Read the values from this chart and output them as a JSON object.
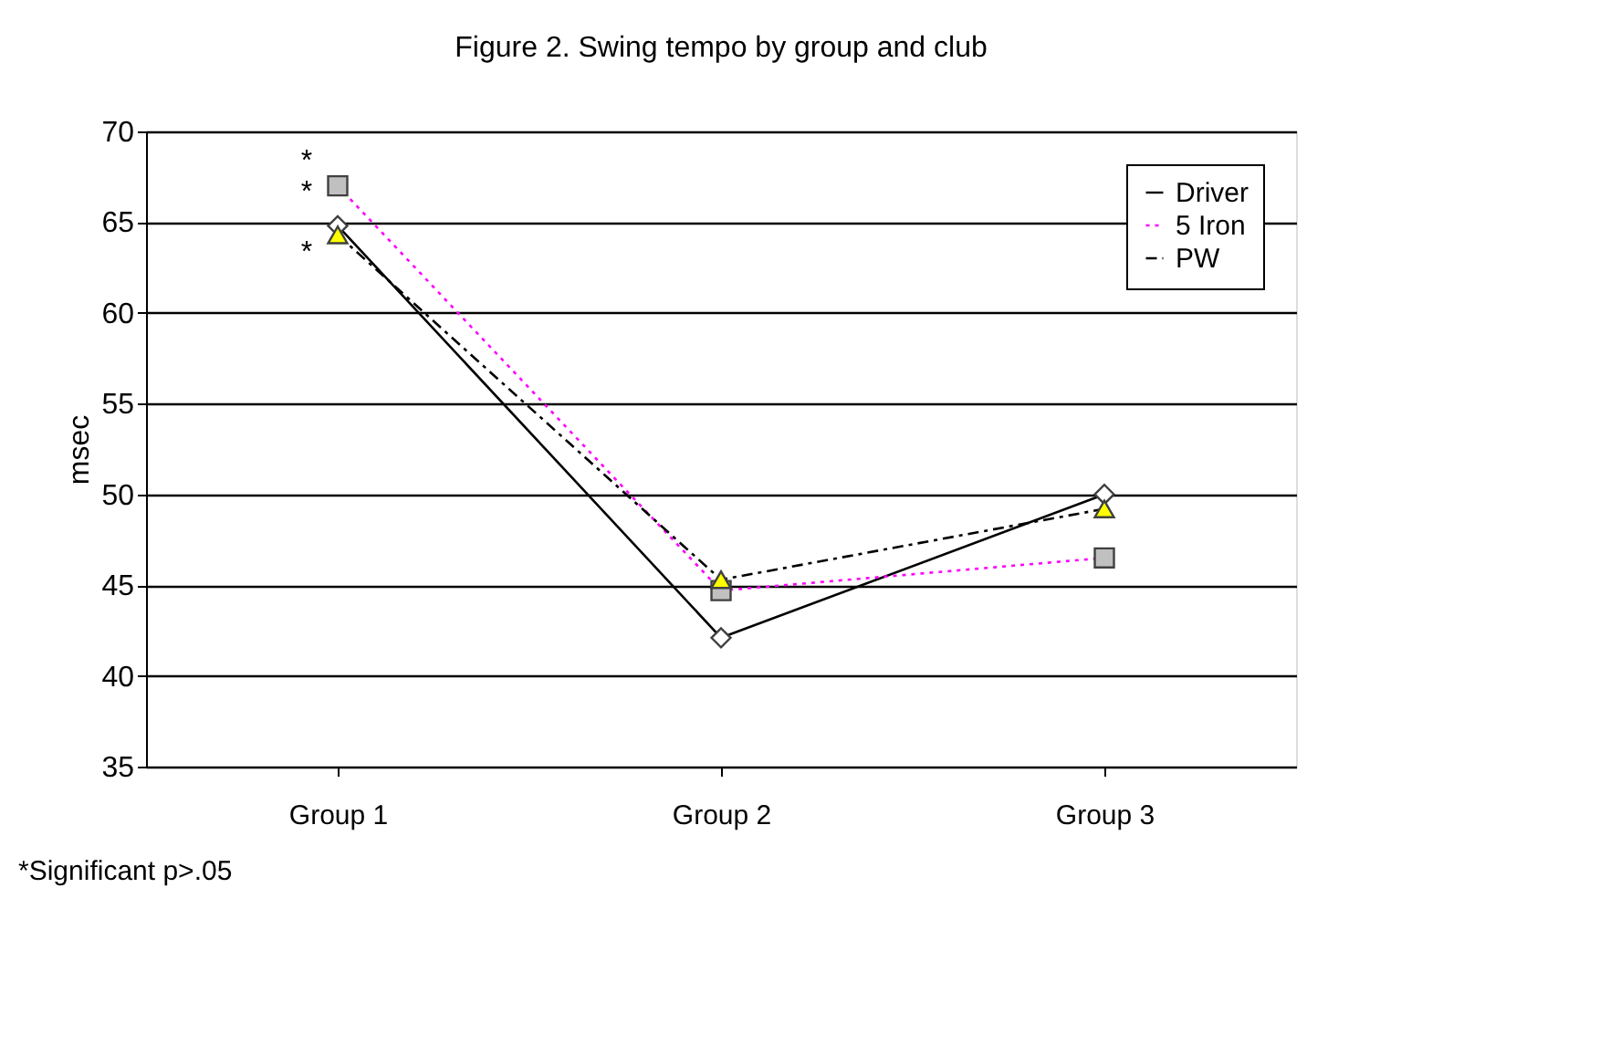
{
  "chart_data": {
    "type": "line",
    "title": "Figure 2. Swing tempo by group and club",
    "ylabel": "msec",
    "categories": [
      "Group 1",
      "Group 2",
      "Group 3"
    ],
    "series": [
      {
        "name": "Driver",
        "color": "#000000",
        "values": [
          64.8,
          42.1,
          50.0
        ],
        "marker": "diamond",
        "line_style": "solid"
      },
      {
        "name": "5 Iron",
        "color": "#ff00ff",
        "values": [
          67.0,
          44.7,
          46.5
        ],
        "marker": "square",
        "line_style": "dotted"
      },
      {
        "name": "PW",
        "color": "#000000",
        "values": [
          64.3,
          45.3,
          49.2
        ],
        "marker": "triangle",
        "line_style": "dashed"
      }
    ],
    "ylim": [
      35,
      70
    ],
    "yticks": [
      35,
      40,
      45,
      50,
      55,
      60,
      65,
      70
    ],
    "grid": "y",
    "legend": "top right",
    "annotations": [
      "*",
      "*",
      "*",
      "*Significant p>.05"
    ]
  }
}
